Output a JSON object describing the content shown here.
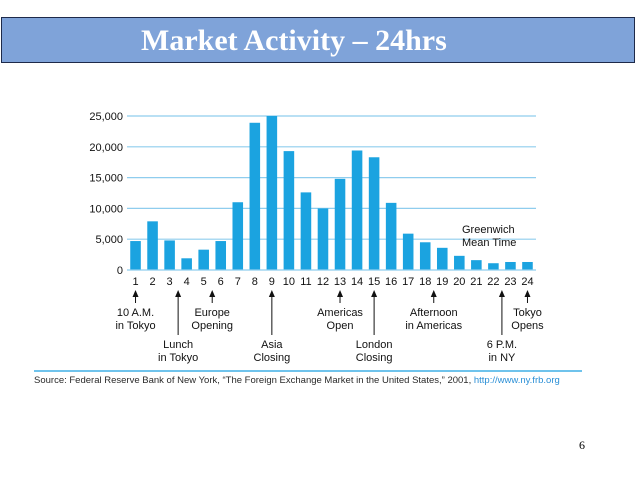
{
  "slide": {
    "title": "Market Activity – 24hrs",
    "page_number": "6",
    "source_prefix": "Source: Federal Reserve Bank of New York, “The Foreign Exchange Market in the United States,” 2001, ",
    "source_link": "http://www.ny.frb.org"
  },
  "chart_data": {
    "type": "bar",
    "categories": [
      "1",
      "2",
      "3",
      "4",
      "5",
      "6",
      "7",
      "8",
      "9",
      "10",
      "11",
      "12",
      "13",
      "14",
      "15",
      "16",
      "17",
      "18",
      "19",
      "20",
      "21",
      "22",
      "23",
      "24"
    ],
    "values": [
      4700,
      7900,
      4800,
      1900,
      3300,
      4700,
      11000,
      23900,
      25000,
      19300,
      12600,
      10000,
      14800,
      19400,
      18300,
      10900,
      5900,
      4500,
      3600,
      2300,
      1600,
      1100,
      1300,
      1300
    ],
    "ylim": [
      0,
      25000
    ],
    "yticks": [
      0,
      5000,
      10000,
      15000,
      20000,
      25000
    ],
    "ytick_labels": [
      "0",
      "5,000",
      "10,000",
      "15,000",
      "20,000",
      "25,000"
    ],
    "grid": true,
    "bar_color": "#1ba3e0",
    "grid_color": "#8fcdee",
    "annotation": [
      "Greenwich",
      "Mean Time"
    ],
    "events": [
      {
        "hour": 1,
        "lines": [
          "10 A.M.",
          "in Tokyo"
        ],
        "tier": 1
      },
      {
        "hour": 3.5,
        "lines": [
          "Lunch",
          "in Tokyo"
        ],
        "tier": 2
      },
      {
        "hour": 5.5,
        "lines": [
          "Europe",
          "Opening"
        ],
        "tier": 1
      },
      {
        "hour": 9,
        "lines": [
          "Asia",
          "Closing"
        ],
        "tier": 2
      },
      {
        "hour": 13,
        "lines": [
          "Americas",
          "Open"
        ],
        "tier": 1
      },
      {
        "hour": 15,
        "lines": [
          "London",
          "Closing"
        ],
        "tier": 2
      },
      {
        "hour": 18.5,
        "lines": [
          "Afternoon",
          "in Americas"
        ],
        "tier": 1
      },
      {
        "hour": 22.5,
        "lines": [
          "6 P.M.",
          "in NY"
        ],
        "tier": 2
      },
      {
        "hour": 24,
        "lines": [
          "Tokyo",
          "Opens"
        ],
        "tier": 1
      }
    ]
  }
}
